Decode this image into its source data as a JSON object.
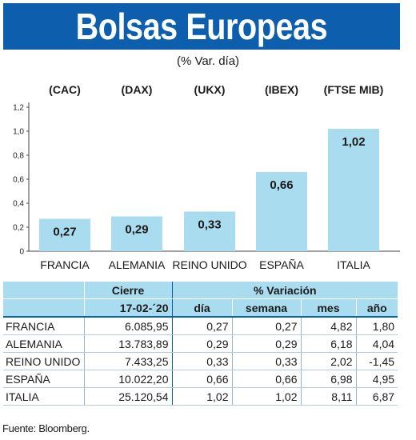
{
  "header": {
    "title": "Bolsas Europeas",
    "subtitle": "(% Var. día)"
  },
  "colors": {
    "banner": "#0d5fae",
    "bar": "#a9dcef",
    "table_header": "#a9dcef"
  },
  "chart_data": {
    "type": "bar",
    "categories": [
      "FRANCIA",
      "ALEMANIA",
      "REINO UNIDO",
      "ESPAÑA",
      "ITALIA"
    ],
    "indices": [
      "(CAC)",
      "(DAX)",
      "(UKX)",
      "(IBEX)",
      "(FTSE MIB)"
    ],
    "values": [
      0.27,
      0.29,
      0.33,
      0.66,
      1.02
    ],
    "value_labels": [
      "0,27",
      "0,29",
      "0,33",
      "0,66",
      "1,02"
    ],
    "yticks": [
      "0",
      "0,2",
      "0,4",
      "0,6",
      "0,8",
      "1,0",
      "1,2"
    ],
    "ylim": [
      0,
      1.2
    ],
    "grid": false
  },
  "table": {
    "header_row1": {
      "cierre": "Cierre",
      "variacion": "% Variación"
    },
    "header_row2": {
      "fecha": "17-02-´20",
      "dia": "día",
      "semana": "semana",
      "mes": "mes",
      "ano": "año"
    },
    "rows": [
      {
        "pais": "FRANCIA",
        "cierre": "6.085,95",
        "dia": "0,27",
        "semana": "0,27",
        "mes": "4,82",
        "ano": "1,80"
      },
      {
        "pais": "ALEMANIA",
        "cierre": "13.783,89",
        "dia": "0,29",
        "semana": "0,29",
        "mes": "6,18",
        "ano": "4,04"
      },
      {
        "pais": "REINO UNIDO",
        "cierre": "7.433,25",
        "dia": "0,33",
        "semana": "0,33",
        "mes": "2,02",
        "ano": "-1,45"
      },
      {
        "pais": "ESPAÑA",
        "cierre": "10.022,20",
        "dia": "0,66",
        "semana": "0,66",
        "mes": "6,98",
        "ano": "4,95"
      },
      {
        "pais": "ITALIA",
        "cierre": "25.120,54",
        "dia": "1,02",
        "semana": "1,02",
        "mes": "8,11",
        "ano": "6,87"
      }
    ]
  },
  "source": "Fuente: Bloomberg."
}
